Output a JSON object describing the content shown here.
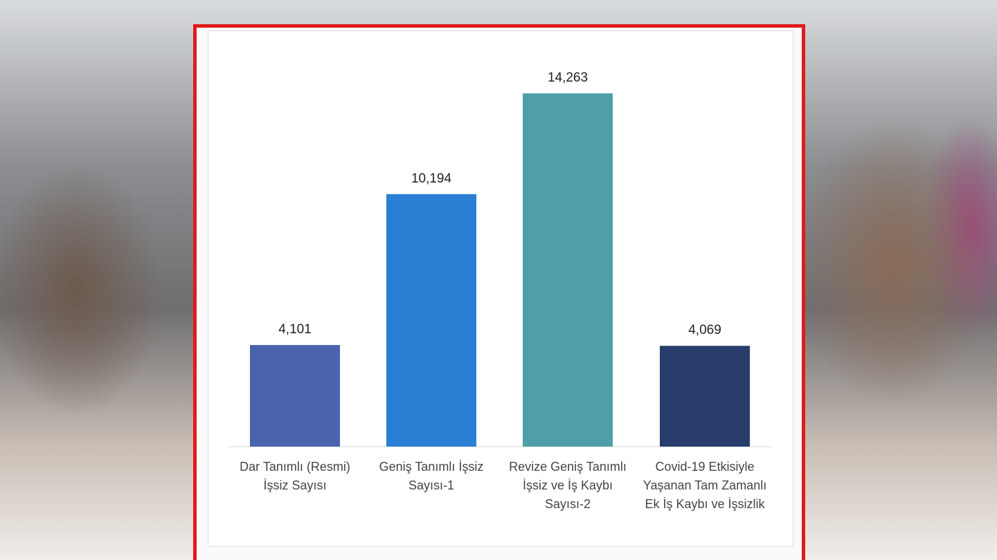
{
  "chart_data": {
    "type": "bar",
    "categories": [
      "Dar Tanımlı (Resmi) İşsiz Sayısı",
      "Geniş Tanımlı İşsiz Sayısı-1",
      "Revize Geniş Tanımlı İşsiz ve İş Kaybı Sayısı-2",
      "Covid-19 Etkisiyle Yaşanan Tam Zamanlı Ek İş Kaybı ve İşsizlik"
    ],
    "values": [
      4101,
      10194,
      14263,
      4069
    ],
    "value_labels": [
      "4,101",
      "10,194",
      "14,263",
      "4,069"
    ],
    "colors": [
      "#4a63ad",
      "#2a7fd4",
      "#4f9fa9",
      "#283d6b"
    ]
  }
}
